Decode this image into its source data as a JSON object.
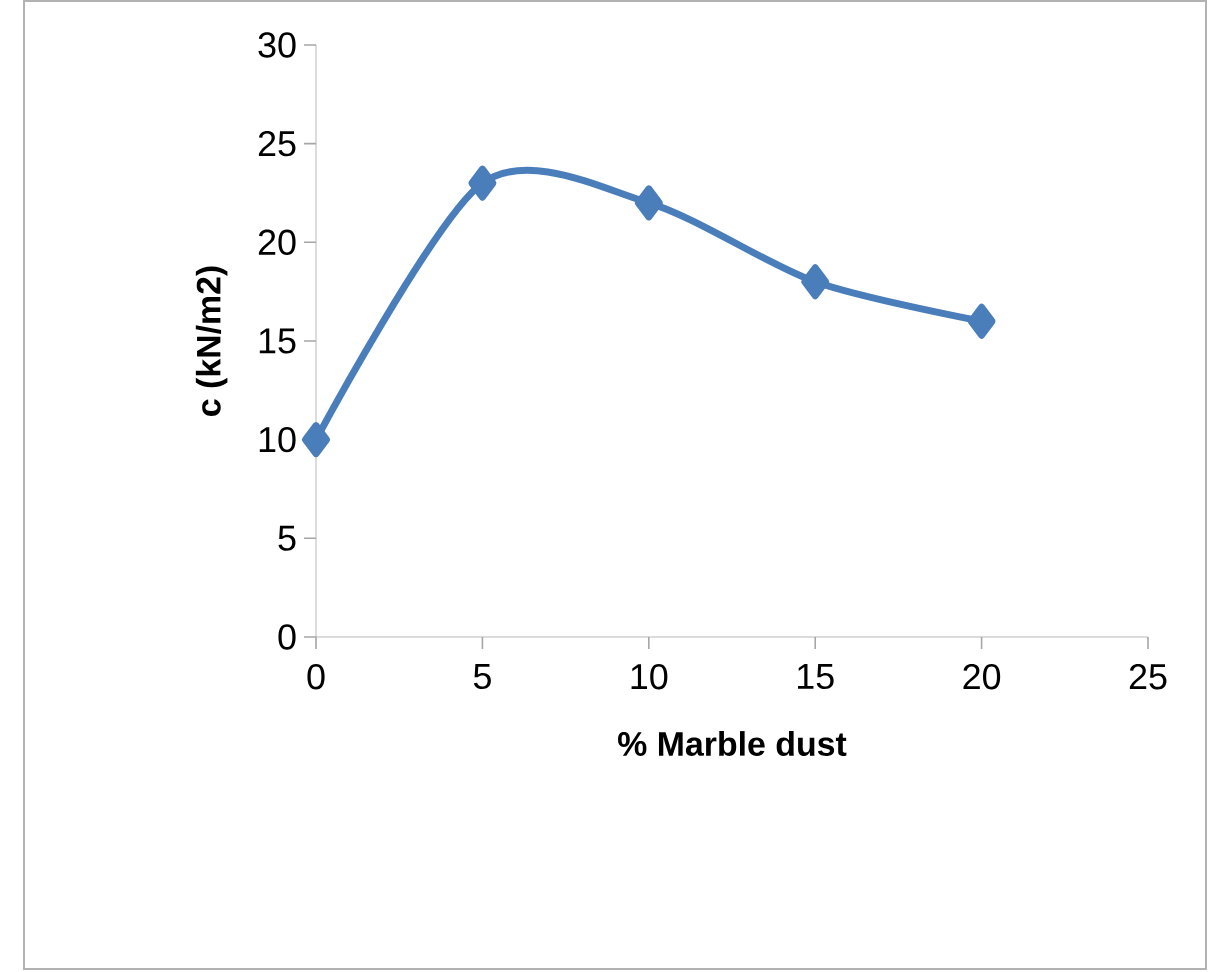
{
  "chart_data": {
    "type": "line",
    "xlabel": "% Marble dust",
    "ylabel": "c (kN/m2)",
    "x": [
      0,
      5,
      10,
      15,
      20
    ],
    "series": [
      {
        "color": "#4a7ebb",
        "values": [
          10,
          23,
          22,
          18,
          16
        ]
      }
    ],
    "xlim": [
      0,
      25
    ],
    "ylim": [
      0,
      30
    ],
    "xticks": [
      0,
      5,
      10,
      15,
      20,
      25
    ],
    "yticks": [
      0,
      5,
      10,
      15,
      20,
      25,
      30
    ],
    "marker": "diamond",
    "line_style": "solid"
  }
}
